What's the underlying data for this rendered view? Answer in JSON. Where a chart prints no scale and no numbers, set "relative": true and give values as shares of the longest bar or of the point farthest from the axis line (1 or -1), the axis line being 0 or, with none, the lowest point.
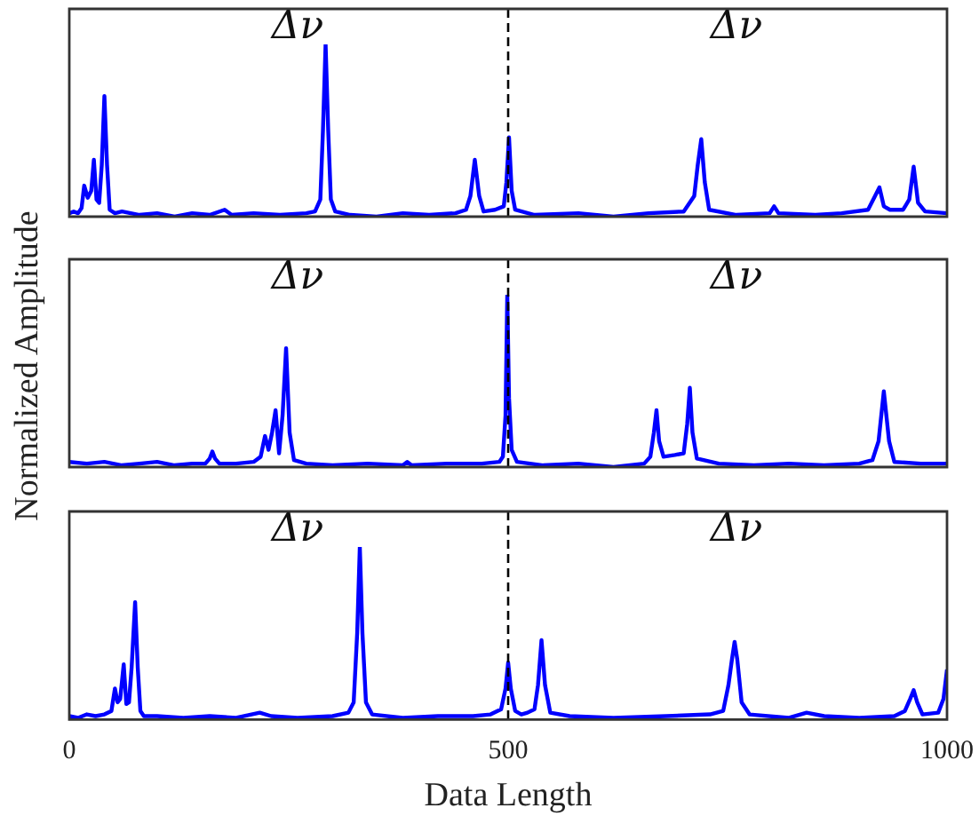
{
  "chart_data": [
    {
      "type": "line",
      "relative": true,
      "xlim": [
        0,
        1000
      ],
      "xticks": [
        0,
        500,
        1000
      ],
      "tick_labels": false,
      "grid": false,
      "legend": false,
      "marker": "none",
      "line_style": "solid",
      "x": [
        0,
        5,
        10,
        14,
        17,
        21,
        25,
        28,
        31,
        34,
        37,
        40,
        43,
        46,
        52,
        60,
        80,
        100,
        120,
        140,
        160,
        177,
        185,
        210,
        240,
        270,
        280,
        286,
        289,
        292,
        295,
        298,
        303,
        320,
        350,
        380,
        410,
        440,
        452,
        457,
        462,
        467,
        472,
        485,
        495,
        498,
        501,
        504,
        508,
        530,
        580,
        620,
        660,
        700,
        712,
        716,
        720,
        724,
        729,
        760,
        798,
        803,
        808,
        850,
        880,
        910,
        918,
        923,
        928,
        935,
        950,
        957,
        962,
        967,
        975,
        1000
      ],
      "series": [
        {
          "color": "#0000ff",
          "values": [
            0.02,
            0.03,
            0.02,
            0.05,
            0.18,
            0.11,
            0.15,
            0.33,
            0.1,
            0.08,
            0.3,
            0.7,
            0.3,
            0.04,
            0.02,
            0.03,
            0.01,
            0.02,
            0,
            0.02,
            0.01,
            0.04,
            0.01,
            0.02,
            0.01,
            0.02,
            0.03,
            0.1,
            0.5,
            1,
            0.5,
            0.1,
            0.03,
            0.01,
            0,
            0.02,
            0.01,
            0.02,
            0.04,
            0.12,
            0.33,
            0.12,
            0.03,
            0.04,
            0.06,
            0.2,
            0.46,
            0.15,
            0.04,
            0.01,
            0.02,
            0,
            0.02,
            0.03,
            0.12,
            0.3,
            0.45,
            0.2,
            0.04,
            0.01,
            0.02,
            0.06,
            0.02,
            0.01,
            0.02,
            0.04,
            0.12,
            0.17,
            0.06,
            0.04,
            0.04,
            0.1,
            0.29,
            0.08,
            0.03,
            0.02
          ]
        }
      ],
      "ref_lines": [
        {
          "axis": "x",
          "value": 500,
          "color": "#000000",
          "line_style": "dashed"
        }
      ],
      "annotations": [
        "Δν",
        "Δν"
      ]
    },
    {
      "type": "line",
      "relative": true,
      "xlim": [
        0,
        1000
      ],
      "xticks": [
        0,
        500,
        1000
      ],
      "tick_labels": false,
      "grid": false,
      "legend": false,
      "marker": "none",
      "line_style": "solid",
      "ylabel": "Normalized Amplitude",
      "x": [
        0,
        20,
        40,
        60,
        80,
        100,
        120,
        140,
        155,
        160,
        163,
        166,
        171,
        190,
        210,
        218,
        223,
        227,
        231,
        235,
        239,
        243,
        247,
        251,
        256,
        270,
        300,
        340,
        380,
        385,
        390,
        430,
        470,
        490,
        494,
        497,
        499,
        501,
        504,
        510,
        540,
        580,
        620,
        655,
        662,
        666,
        669,
        672,
        677,
        690,
        700,
        704,
        707,
        710,
        715,
        740,
        780,
        820,
        860,
        900,
        915,
        922,
        928,
        934,
        940,
        970,
        1000
      ],
      "series": [
        {
          "color": "#0000ff",
          "values": [
            0.03,
            0.02,
            0.03,
            0.01,
            0.02,
            0.03,
            0.01,
            0.02,
            0.02,
            0.05,
            0.09,
            0.05,
            0.02,
            0.02,
            0.03,
            0.06,
            0.18,
            0.1,
            0.2,
            0.33,
            0.08,
            0.3,
            0.69,
            0.2,
            0.04,
            0.02,
            0.01,
            0.02,
            0.01,
            0.03,
            0.01,
            0.02,
            0.02,
            0.03,
            0.06,
            0.3,
            1,
            0.4,
            0.1,
            0.03,
            0.01,
            0.02,
            0,
            0.02,
            0.06,
            0.2,
            0.33,
            0.15,
            0.06,
            0.07,
            0.08,
            0.25,
            0.46,
            0.2,
            0.05,
            0.02,
            0.01,
            0.02,
            0.01,
            0.02,
            0.04,
            0.15,
            0.44,
            0.15,
            0.03,
            0.02,
            0.02
          ]
        }
      ],
      "ref_lines": [
        {
          "axis": "x",
          "value": 500,
          "color": "#000000",
          "line_style": "dashed"
        }
      ],
      "annotations": [
        "Δν",
        "Δν"
      ]
    },
    {
      "type": "line",
      "relative": true,
      "xlim": [
        0,
        1000
      ],
      "xticks": [
        0,
        500,
        1000
      ],
      "tick_labels": "x",
      "grid": false,
      "legend": false,
      "marker": "none",
      "line_style": "solid",
      "xlabel": "Data Length",
      "x": [
        0,
        10,
        20,
        30,
        40,
        48,
        52,
        55,
        58,
        62,
        65,
        68,
        71,
        75,
        78,
        81,
        85,
        100,
        130,
        160,
        190,
        217,
        230,
        260,
        300,
        318,
        324,
        328,
        331,
        334,
        338,
        345,
        380,
        420,
        460,
        480,
        492,
        497,
        500,
        503,
        508,
        515,
        522,
        530,
        534,
        538,
        542,
        548,
        570,
        620,
        680,
        730,
        745,
        751,
        755,
        758,
        761,
        766,
        775,
        820,
        840,
        860,
        900,
        940,
        952,
        958,
        962,
        966,
        972,
        990,
        996,
        1000
      ],
      "series": [
        {
          "color": "#0000ff",
          "values": [
            0.02,
            0.01,
            0.03,
            0.02,
            0.03,
            0.05,
            0.18,
            0.1,
            0.12,
            0.32,
            0.09,
            0.1,
            0.3,
            0.68,
            0.3,
            0.05,
            0.02,
            0.02,
            0.01,
            0.02,
            0.01,
            0.04,
            0.02,
            0.01,
            0.02,
            0.04,
            0.1,
            0.5,
            1,
            0.5,
            0.1,
            0.03,
            0.01,
            0.02,
            0.02,
            0.03,
            0.06,
            0.18,
            0.33,
            0.18,
            0.05,
            0.03,
            0.04,
            0.06,
            0.2,
            0.46,
            0.2,
            0.04,
            0.02,
            0.01,
            0.02,
            0.03,
            0.05,
            0.2,
            0.35,
            0.45,
            0.35,
            0.1,
            0.03,
            0.01,
            0.04,
            0.02,
            0.01,
            0.02,
            0.05,
            0.12,
            0.17,
            0.1,
            0.03,
            0.04,
            0.12,
            0.29
          ]
        }
      ],
      "ref_lines": [
        {
          "axis": "x",
          "value": 500,
          "color": "#000000",
          "line_style": "dashed"
        }
      ],
      "annotations": [
        "Δν",
        "Δν"
      ]
    }
  ]
}
